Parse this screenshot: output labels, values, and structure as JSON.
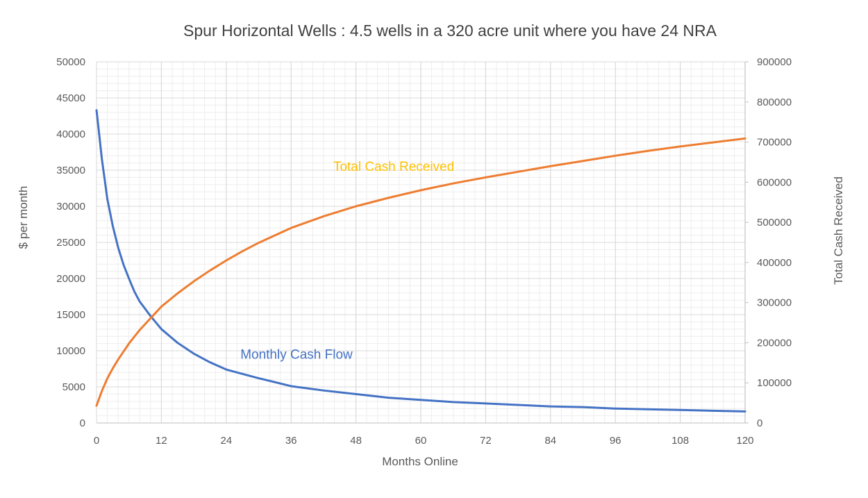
{
  "chart_data": {
    "type": "line",
    "title": "Spur Horizontal Wells : 4.5 wells in a 320 acre unit where you have 24 NRA",
    "xlabel": "Months Online",
    "ylabel": "$ per month",
    "y2label": "Total Cash Received",
    "xlim": [
      0,
      120
    ],
    "ylim": [
      0,
      50000
    ],
    "y2lim": [
      0,
      900000
    ],
    "x_ticks": [
      0,
      12,
      24,
      36,
      48,
      60,
      72,
      84,
      96,
      108,
      120
    ],
    "y_ticks": [
      0,
      5000,
      10000,
      15000,
      20000,
      25000,
      30000,
      35000,
      40000,
      45000,
      50000
    ],
    "y2_ticks": [
      0,
      100000,
      200000,
      300000,
      400000,
      500000,
      600000,
      700000,
      800000,
      900000
    ],
    "grid": true,
    "series": [
      {
        "name": "Monthly Cash Flow",
        "axis": "left",
        "color": "#4472C4",
        "x": [
          0,
          1,
          2,
          3,
          4,
          5,
          6,
          7,
          8,
          10,
          12,
          15,
          18,
          21,
          24,
          30,
          36,
          42,
          48,
          54,
          60,
          66,
          72,
          78,
          84,
          90,
          96,
          102,
          108,
          114,
          120
        ],
        "values": [
          43300,
          36500,
          31000,
          27300,
          24300,
          21900,
          20000,
          18200,
          16800,
          14800,
          13000,
          11100,
          9600,
          8400,
          7400,
          6200,
          5100,
          4500,
          4000,
          3500,
          3200,
          2900,
          2700,
          2500,
          2300,
          2200,
          2000,
          1900,
          1800,
          1700,
          1600
        ]
      },
      {
        "name": "Total Cash Received",
        "axis": "right",
        "color": "#ED7D31",
        "label_color": "#FFC000",
        "x": [
          0,
          1,
          2,
          3,
          4,
          6,
          8,
          10,
          12,
          15,
          18,
          21,
          24,
          27,
          30,
          36,
          42,
          48,
          54,
          60,
          66,
          72,
          78,
          84,
          90,
          96,
          102,
          108,
          114,
          120
        ],
        "values": [
          43000,
          80000,
          111000,
          136000,
          158000,
          198000,
          232000,
          261000,
          290000,
          323000,
          353000,
          380000,
          405000,
          428000,
          449000,
          486000,
          515000,
          540000,
          561000,
          580000,
          597000,
          612000,
          626000,
          640000,
          653000,
          666000,
          678000,
          689000,
          699000,
          709000
        ]
      }
    ],
    "annotations": [
      {
        "text": "Total Cash Received",
        "series": "Total Cash Received",
        "at_x": 55,
        "at_y2": 628000
      },
      {
        "text": "Monthly Cash Flow",
        "series": "Monthly Cash Flow",
        "at_x": 37,
        "at_y": 8900
      }
    ]
  }
}
